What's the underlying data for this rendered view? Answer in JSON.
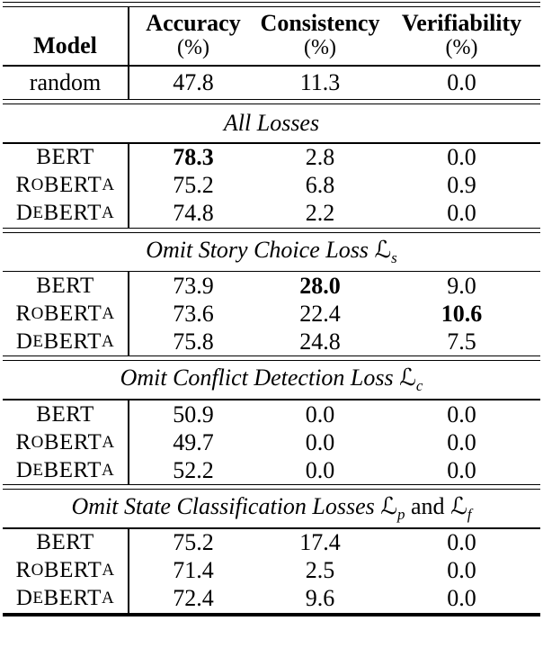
{
  "page": {
    "background": "#ffffff",
    "text_color": "#000000"
  },
  "chart_data": {
    "type": "table",
    "columns": [
      "Model",
      "Accuracy (%)",
      "Consistency (%)",
      "Verifiability (%)"
    ],
    "sections": [
      {
        "title": "",
        "rows": [
          [
            "random",
            47.8,
            11.3,
            0.0
          ]
        ]
      },
      {
        "title": "All Losses",
        "rows": [
          [
            "BERT",
            78.3,
            2.8,
            0.0
          ],
          [
            "RoBERTa",
            75.2,
            6.8,
            0.9
          ],
          [
            "DeBERTa",
            74.8,
            2.2,
            0.0
          ]
        ]
      },
      {
        "title": "Omit Story Choice Loss Ls",
        "rows": [
          [
            "BERT",
            73.9,
            28.0,
            9.0
          ],
          [
            "RoBERTa",
            73.6,
            22.4,
            10.6
          ],
          [
            "DeBERTa",
            75.8,
            24.8,
            7.5
          ]
        ]
      },
      {
        "title": "Omit Conflict Detection Loss Lc",
        "rows": [
          [
            "BERT",
            50.9,
            0.0,
            0.0
          ],
          [
            "RoBERTa",
            49.7,
            0.0,
            0.0
          ],
          [
            "DeBERTa",
            52.2,
            0.0,
            0.0
          ]
        ]
      },
      {
        "title": "Omit State Classification Losses Lp and Lf",
        "rows": [
          [
            "BERT",
            75.2,
            17.4,
            0.0
          ],
          [
            "RoBERTa",
            71.4,
            2.5,
            0.0
          ],
          [
            "DeBERTa",
            72.4,
            9.6,
            0.0
          ]
        ]
      }
    ]
  },
  "table": {
    "loss_symbol": "ℒ",
    "header": {
      "model_label": "Model",
      "columns": [
        {
          "name": "Accuracy",
          "unit": "(%)"
        },
        {
          "name": "Consistency",
          "unit": "(%)"
        },
        {
          "name": "Verifiability",
          "unit": "(%)"
        }
      ]
    },
    "baseline": {
      "model": "random",
      "smallcaps": false,
      "values": [
        {
          "text": "47.8",
          "bold": false
        },
        {
          "text": "11.3",
          "bold": false
        },
        {
          "text": "0.0",
          "bold": false
        }
      ]
    },
    "sections": [
      {
        "title": "All Losses",
        "losses": [],
        "conjunction": "",
        "rows": [
          {
            "model": "BERT",
            "smallcaps": true,
            "values": [
              {
                "text": "78.3",
                "bold": true
              },
              {
                "text": "2.8",
                "bold": false
              },
              {
                "text": "0.0",
                "bold": false
              }
            ]
          },
          {
            "model": "RoBERTa",
            "smallcaps": true,
            "values": [
              {
                "text": "75.2",
                "bold": false
              },
              {
                "text": "6.8",
                "bold": false
              },
              {
                "text": "0.9",
                "bold": false
              }
            ]
          },
          {
            "model": "DeBERTa",
            "smallcaps": true,
            "values": [
              {
                "text": "74.8",
                "bold": false
              },
              {
                "text": "2.2",
                "bold": false
              },
              {
                "text": "0.0",
                "bold": false
              }
            ]
          }
        ]
      },
      {
        "title": "Omit Story Choice Loss",
        "losses": [
          "s"
        ],
        "conjunction": "",
        "rows": [
          {
            "model": "BERT",
            "smallcaps": true,
            "values": [
              {
                "text": "73.9",
                "bold": false
              },
              {
                "text": "28.0",
                "bold": true
              },
              {
                "text": "9.0",
                "bold": false
              }
            ]
          },
          {
            "model": "RoBERTa",
            "smallcaps": true,
            "values": [
              {
                "text": "73.6",
                "bold": false
              },
              {
                "text": "22.4",
                "bold": false
              },
              {
                "text": "10.6",
                "bold": true
              }
            ]
          },
          {
            "model": "DeBERTa",
            "smallcaps": true,
            "values": [
              {
                "text": "75.8",
                "bold": false
              },
              {
                "text": "24.8",
                "bold": false
              },
              {
                "text": "7.5",
                "bold": false
              }
            ]
          }
        ]
      },
      {
        "title": "Omit Conflict Detection Loss",
        "losses": [
          "c"
        ],
        "conjunction": "",
        "rows": [
          {
            "model": "BERT",
            "smallcaps": true,
            "values": [
              {
                "text": "50.9",
                "bold": false
              },
              {
                "text": "0.0",
                "bold": false
              },
              {
                "text": "0.0",
                "bold": false
              }
            ]
          },
          {
            "model": "RoBERTa",
            "smallcaps": true,
            "values": [
              {
                "text": "49.7",
                "bold": false
              },
              {
                "text": "0.0",
                "bold": false
              },
              {
                "text": "0.0",
                "bold": false
              }
            ]
          },
          {
            "model": "DeBERTa",
            "smallcaps": true,
            "values": [
              {
                "text": "52.2",
                "bold": false
              },
              {
                "text": "0.0",
                "bold": false
              },
              {
                "text": "0.0",
                "bold": false
              }
            ]
          }
        ]
      },
      {
        "title": "Omit State Classification Losses",
        "losses": [
          "p",
          "f"
        ],
        "conjunction": "and",
        "rows": [
          {
            "model": "BERT",
            "smallcaps": true,
            "values": [
              {
                "text": "75.2",
                "bold": false
              },
              {
                "text": "17.4",
                "bold": false
              },
              {
                "text": "0.0",
                "bold": false
              }
            ]
          },
          {
            "model": "RoBERTa",
            "smallcaps": true,
            "values": [
              {
                "text": "71.4",
                "bold": false
              },
              {
                "text": "2.5",
                "bold": false
              },
              {
                "text": "0.0",
                "bold": false
              }
            ]
          },
          {
            "model": "DeBERTa",
            "smallcaps": true,
            "values": [
              {
                "text": "72.4",
                "bold": false
              },
              {
                "text": "9.6",
                "bold": false
              },
              {
                "text": "0.0",
                "bold": false
              }
            ]
          }
        ]
      }
    ]
  }
}
